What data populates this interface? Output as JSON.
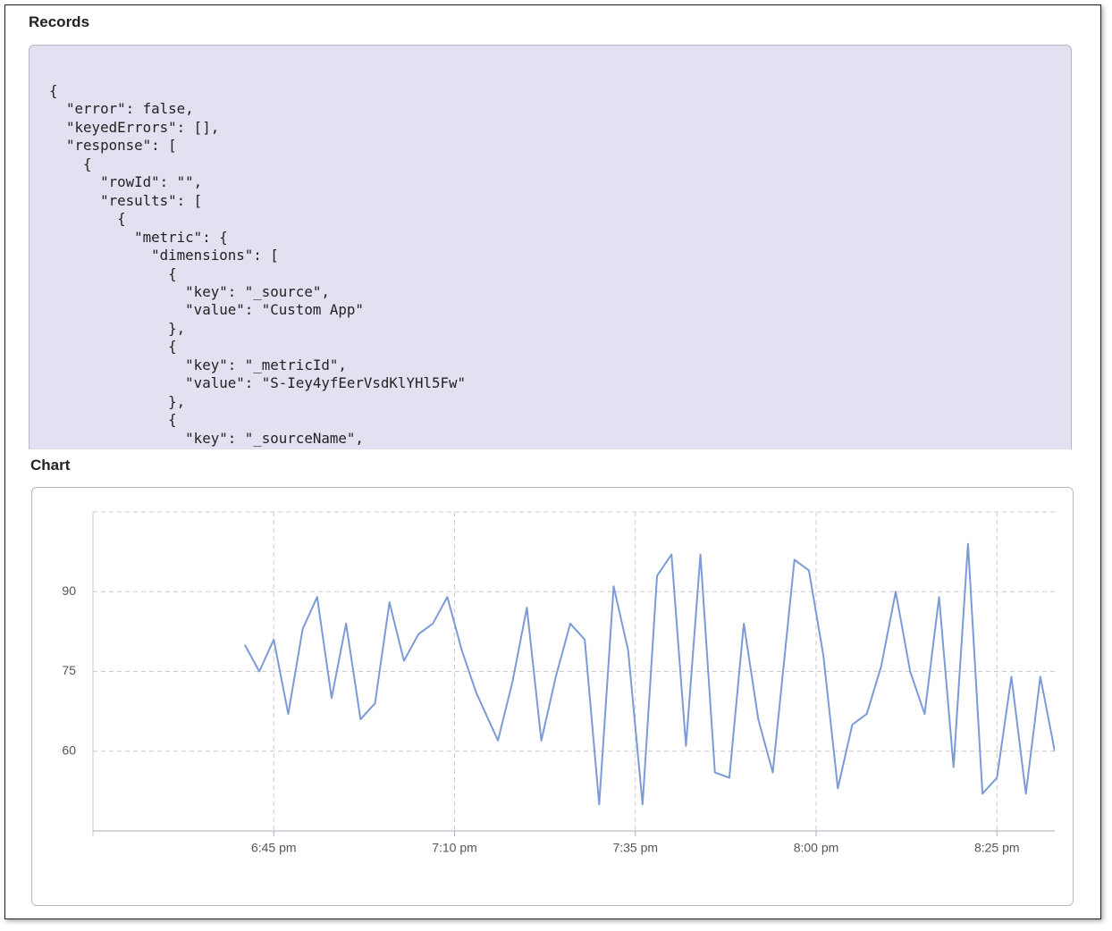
{
  "records": {
    "title": "Records",
    "lines": [
      "{",
      "  \"error\": false,",
      "  \"keyedErrors\": [],",
      "  \"response\": [",
      "    {",
      "      \"rowId\": \"\",",
      "      \"results\": [",
      "        {",
      "          \"metric\": {",
      "            \"dimensions\": [",
      "              {",
      "                \"key\": \"_source\",",
      "                \"value\": \"Custom App\"",
      "              },",
      "              {",
      "                \"key\": \"_metricId\",",
      "                \"value\": \"S-Iey4yfEerVsdKlYHl5Fw\"",
      "              },",
      "              {",
      "                \"key\": \"_sourceName\","
    ]
  },
  "chart_data": {
    "type": "line",
    "title": "Chart",
    "color": "#7b9bd6",
    "grid": true,
    "x": [
      1121,
      1123,
      1125,
      1127,
      1129,
      1131,
      1133,
      1135,
      1137,
      1139,
      1141,
      1143,
      1145,
      1147,
      1149,
      1151,
      1153,
      1156,
      1158,
      1160,
      1162,
      1164,
      1166,
      1168,
      1170,
      1172,
      1174,
      1176,
      1178,
      1180,
      1182,
      1184,
      1186,
      1188,
      1190,
      1192,
      1194,
      1197,
      1199,
      1201,
      1203,
      1205,
      1207,
      1209,
      1211,
      1213,
      1215,
      1217,
      1219,
      1221,
      1223,
      1225,
      1227,
      1229,
      1231,
      1233
    ],
    "values": [
      80,
      75,
      81,
      67,
      83,
      89,
      70,
      84,
      66,
      69,
      88,
      77,
      82,
      84,
      89,
      79,
      71,
      62,
      73,
      87,
      62,
      74,
      84,
      81,
      50,
      91,
      79,
      50,
      93,
      97,
      61,
      97,
      56,
      55,
      84,
      66,
      56,
      96,
      94,
      78,
      53,
      65,
      67,
      76,
      90,
      75,
      67,
      89,
      57,
      99,
      52,
      55,
      74,
      52,
      74,
      60
    ],
    "xlim": [
      1100,
      1233
    ],
    "ylim": [
      45,
      105
    ],
    "xticks": [
      {
        "value": 1125,
        "label": "6:45 pm"
      },
      {
        "value": 1150,
        "label": "7:10 pm"
      },
      {
        "value": 1175,
        "label": "7:35 pm"
      },
      {
        "value": 1200,
        "label": "8:00 pm"
      },
      {
        "value": 1225,
        "label": "8:25 pm"
      }
    ],
    "yticks": [
      60,
      75,
      90
    ]
  }
}
